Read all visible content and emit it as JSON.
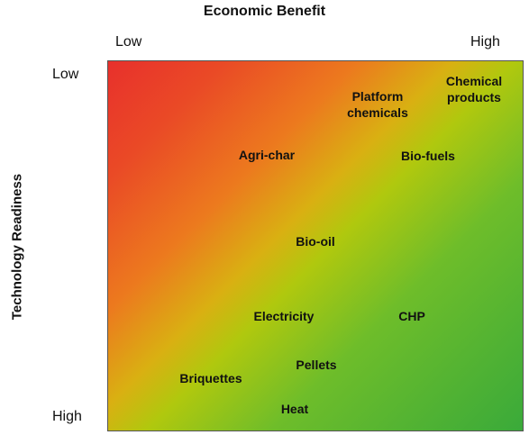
{
  "x_axis": {
    "title": "Economic Benefit",
    "low": "Low",
    "high": "High"
  },
  "y_axis": {
    "title": "Technology Readiness",
    "low": "Low",
    "high": "High"
  },
  "items": [
    {
      "name": "platform-chemicals",
      "label": "Platform\nchemicals"
    },
    {
      "name": "chemical-products",
      "label": "Chemical\nproducts"
    },
    {
      "name": "agri-char",
      "label": "Agri-char"
    },
    {
      "name": "bio-fuels",
      "label": "Bio-fuels"
    },
    {
      "name": "bio-oil",
      "label": "Bio-oil"
    },
    {
      "name": "electricity",
      "label": "Electricity"
    },
    {
      "name": "chp",
      "label": "CHP"
    },
    {
      "name": "pellets",
      "label": "Pellets"
    },
    {
      "name": "briquettes",
      "label": "Briquettes"
    },
    {
      "name": "heat",
      "label": "Heat"
    }
  ],
  "colors": {
    "low_corner": "#e8302c",
    "middle": "#b0c80e",
    "high_corner": "#3aaa3a"
  }
}
